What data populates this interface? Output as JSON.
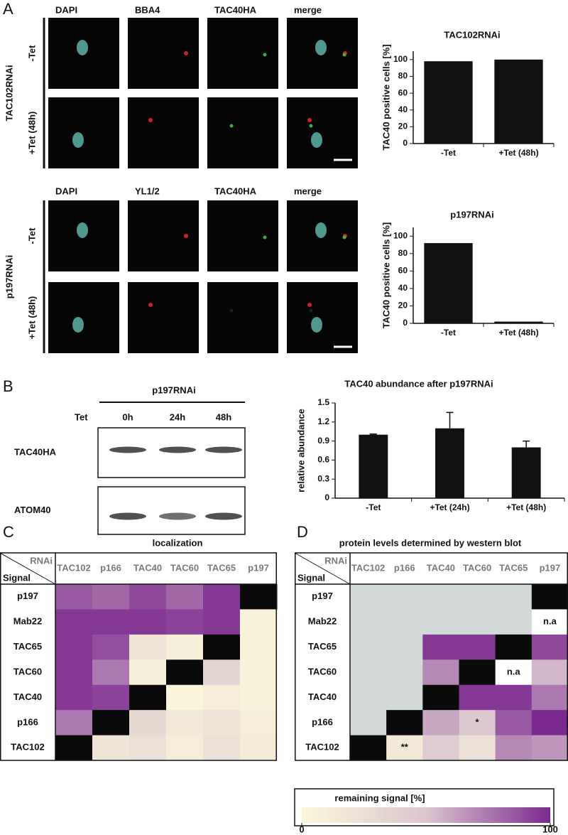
{
  "panels": [
    "A",
    "B",
    "C",
    "D"
  ],
  "microscopy": [
    {
      "group": "TAC102RNAi",
      "channels": [
        "DAPI",
        "BBA4",
        "TAC40HA",
        "merge"
      ],
      "conditions": [
        "-Tet",
        "+Tet (48h)"
      ]
    },
    {
      "group": "p197RNAi",
      "channels": [
        "DAPI",
        "YL1/2",
        "TAC40HA",
        "merge"
      ],
      "conditions": [
        "-Tet",
        "+Tet (48h)"
      ]
    }
  ],
  "blot": {
    "title": "p197RNAi",
    "row_label": "Tet",
    "lanes": [
      "0h",
      "24h",
      "48h"
    ],
    "bands": [
      "TAC40HA",
      "ATOM40"
    ]
  },
  "chart_data": [
    {
      "type": "bar",
      "title": "TAC102RNAi",
      "y_label": "TAC40 positive cells [%]",
      "categories": [
        "-Tet",
        "+Tet (48h)"
      ],
      "values": [
        98,
        100
      ],
      "color": "#111111",
      "ylim": [
        0,
        110
      ],
      "yticks": [
        0,
        20,
        40,
        60,
        80,
        100
      ]
    },
    {
      "type": "bar",
      "title": "p197RNAi",
      "y_label": "TAC40 positive cells [%]",
      "categories": [
        "-Tet",
        "+Tet (48h)"
      ],
      "values": [
        92,
        2
      ],
      "color": "#111111",
      "ylim": [
        0,
        110
      ],
      "yticks": [
        0,
        20,
        40,
        60,
        80,
        100
      ]
    },
    {
      "type": "bar",
      "title": "TAC40 abundance after p197RNAi",
      "y_label": "relative abundance",
      "categories": [
        "-Tet",
        "+Tet (24h)",
        "+Tet (48h)"
      ],
      "values": [
        1.0,
        1.1,
        0.8
      ],
      "errors": [
        0.01,
        0.25,
        0.1
      ],
      "color": "#111111",
      "ylim": [
        0,
        1.5
      ],
      "yticks": [
        0,
        0.3,
        0.6,
        0.9,
        1.2,
        1.5
      ]
    },
    {
      "type": "heatmap",
      "title": "localization",
      "row_header": "Signal",
      "col_header": "RNAi",
      "columns": [
        "TAC102",
        "p166",
        "TAC40",
        "TAC60",
        "TAC65",
        "p197"
      ],
      "rows": [
        "p197",
        "Mab22",
        "TAC65",
        "TAC60",
        "TAC40",
        "p166",
        "TAC102"
      ],
      "values": [
        [
          85,
          80,
          90,
          80,
          95,
          null
        ],
        [
          95,
          95,
          95,
          92,
          95,
          5
        ],
        [
          95,
          88,
          20,
          8,
          null,
          5
        ],
        [
          95,
          75,
          8,
          null,
          35,
          5
        ],
        [
          95,
          92,
          null,
          2,
          10,
          5
        ],
        [
          75,
          null,
          30,
          15,
          20,
          10
        ],
        [
          null,
          20,
          25,
          10,
          25,
          12
        ]
      ]
    },
    {
      "type": "heatmap",
      "title": "protein levels determined by western blot",
      "row_header": "Signal",
      "col_header": "RNAi",
      "columns": [
        "TAC102",
        "p166",
        "TAC40",
        "TAC60",
        "TAC65",
        "p197"
      ],
      "rows": [
        "p197",
        "Mab22",
        "TAC65",
        "TAC60",
        "TAC40",
        "p166",
        "TAC102"
      ],
      "values": [
        [
          null,
          null,
          null,
          null,
          null,
          null
        ],
        [
          null,
          null,
          null,
          null,
          null,
          null
        ],
        [
          null,
          null,
          95,
          95,
          null,
          90
        ],
        [
          null,
          null,
          70,
          null,
          null,
          55
        ],
        [
          null,
          null,
          null,
          95,
          95,
          75
        ],
        [
          null,
          null,
          60,
          50,
          85,
          100
        ],
        [
          null,
          15,
          45,
          25,
          70,
          65
        ]
      ],
      "value_labels": [
        [
          null,
          null,
          null,
          null,
          null,
          null
        ],
        [
          null,
          null,
          null,
          null,
          null,
          "n.a"
        ],
        [
          null,
          null,
          null,
          null,
          null,
          null
        ],
        [
          null,
          null,
          null,
          null,
          "n.a",
          null
        ],
        [
          null,
          null,
          null,
          null,
          null,
          null
        ],
        [
          null,
          null,
          null,
          "*",
          null,
          null
        ],
        [
          null,
          "**",
          null,
          null,
          null,
          null
        ]
      ],
      "colorbar_label": "remaining signal [%]",
      "zlim": [
        0,
        100
      ],
      "zticks": [
        0,
        100
      ]
    }
  ]
}
